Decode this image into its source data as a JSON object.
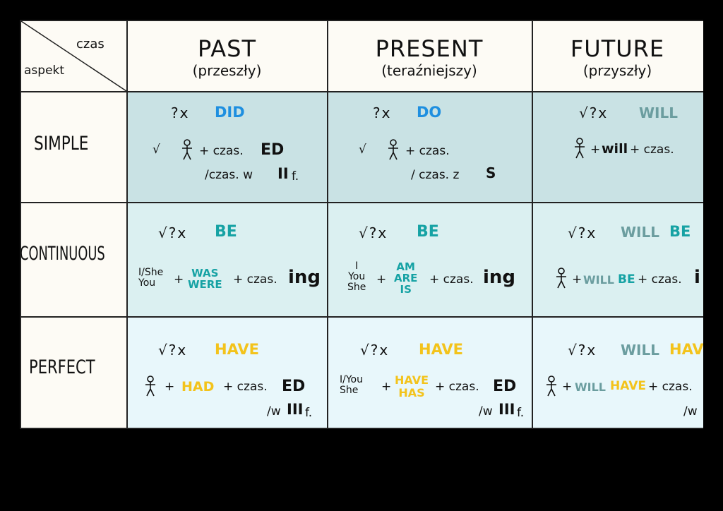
{
  "corner": {
    "top": "czas",
    "bottom": "aspekt"
  },
  "columns": [
    {
      "title": "PAST",
      "sub": "(przeszły)"
    },
    {
      "title": "PRESENT",
      "sub": "(teraźniejszy)"
    },
    {
      "title": "FUTURE",
      "sub": "(przyszły)"
    }
  ],
  "rows": [
    "SIMPLE",
    "CONTINUOUS",
    "PERFECT"
  ],
  "simple": {
    "past": {
      "sym": "?x",
      "aux": "DID",
      "check": "√",
      "plus": "+ czas.",
      "ed": "ED",
      "alt": "/czas. w",
      "roman": "II",
      "f": "f."
    },
    "present": {
      "sym": "?x",
      "aux": "DO",
      "check": "√",
      "plus": "+ czas.",
      "alt": "/ czas. z",
      "s": "S"
    },
    "future": {
      "sym": "√?x",
      "aux": "WILL",
      "plus1": "+",
      "will": "will",
      "plus2": "+ czas."
    }
  },
  "continuous": {
    "past": {
      "sym": "√?x",
      "aux": "BE",
      "subj1": "I/She",
      "subj2": "You",
      "plus": "+",
      "be1": "WAS",
      "be2": "WERE",
      "czas": "+ czas.",
      "ing": "ing"
    },
    "present": {
      "sym": "√?x",
      "aux": "BE",
      "subj1": "I",
      "subj2": "You",
      "subj3": "She",
      "plus": "+",
      "be1": "AM",
      "be2": "ARE",
      "be3": "IS",
      "czas": "+ czas.",
      "ing": "ing"
    },
    "future": {
      "sym": "√?x",
      "aux1": "WILL",
      "aux2": "BE",
      "plus": "+",
      "will": "WILL",
      "be": "BE",
      "czas": "+ czas.",
      "ing": "i"
    }
  },
  "perfect": {
    "past": {
      "sym": "√?x",
      "aux": "HAVE",
      "plus1": "+",
      "had": "HAD",
      "czas": "+ czas.",
      "ed": "ED",
      "alt": "/w",
      "roman": "III",
      "f": "f."
    },
    "present": {
      "sym": "√?x",
      "aux": "HAVE",
      "subj1": "I/You",
      "subj2": "She",
      "plus": "+",
      "h1": "HAVE",
      "h2": "HAS",
      "czas": "+ czas.",
      "ed": "ED",
      "alt": "/w",
      "roman": "III",
      "f": "f."
    },
    "future": {
      "sym": "√?x",
      "aux1": "WILL",
      "aux2": "HAV",
      "plus": "+",
      "will": "WILL",
      "have": "HAVE",
      "czas": "+ czas.",
      "alt": "/w"
    }
  },
  "colors": {
    "blue": "#1e8fe0",
    "teal": "#16a2a4",
    "yellow": "#f3c31b",
    "grayteal": "#6b9d9f"
  }
}
